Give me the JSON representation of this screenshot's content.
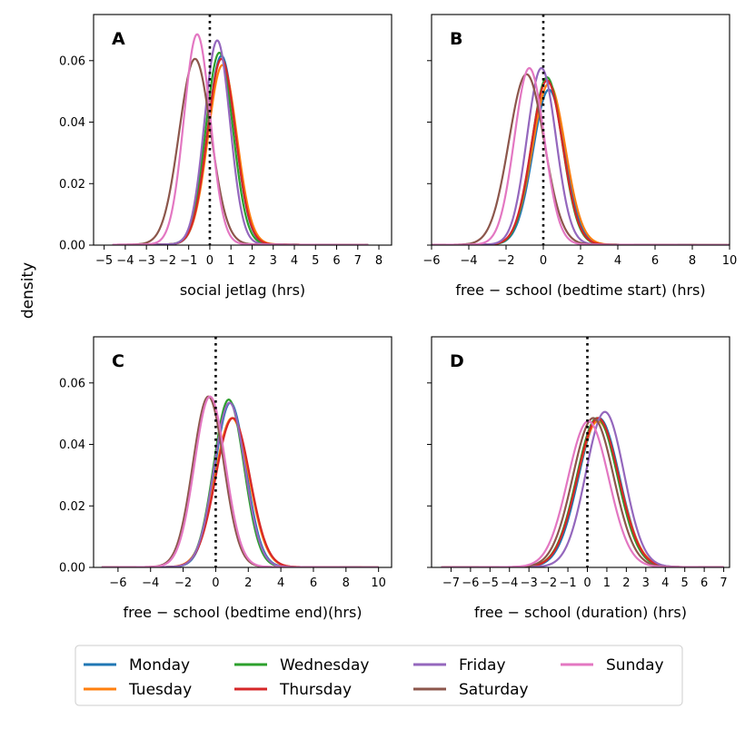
{
  "figure": {
    "shared_ylabel": "density",
    "legend": [
      "Monday",
      "Tuesday",
      "Wednesday",
      "Thursday",
      "Friday",
      "Saturday",
      "Sunday"
    ]
  },
  "colors": {
    "Monday": "#1f77b4",
    "Tuesday": "#ff7f0e",
    "Wednesday": "#2ca02c",
    "Thursday": "#d62728",
    "Friday": "#9467bd",
    "Saturday": "#8c564b",
    "Sunday": "#e377c2"
  },
  "chart_data": [
    {
      "panel": "A",
      "type": "line",
      "title": "A",
      "xlabel": "social jetlag (hrs)",
      "ylabel": "density",
      "xlim": [
        -5.5,
        8.6
      ],
      "ylim": [
        0,
        0.075
      ],
      "xticks": [
        -5,
        -4,
        -3,
        -2,
        -1,
        0,
        1,
        2,
        3,
        4,
        5,
        6,
        7,
        8
      ],
      "yticks": [
        0.0,
        0.02,
        0.04,
        0.06
      ],
      "ytick_labels": [
        "0.00",
        "0.02",
        "0.04",
        "0.06"
      ],
      "vline": 0,
      "series": [
        {
          "name": "Monday",
          "mean": 0.55,
          "sd": 0.65,
          "peak": 0.061,
          "min": -4.6,
          "max": 7.5
        },
        {
          "name": "Tuesday",
          "mean": 0.6,
          "sd": 0.68,
          "peak": 0.058,
          "min": -4.6,
          "max": 7.5
        },
        {
          "name": "Wednesday",
          "mean": 0.45,
          "sd": 0.64,
          "peak": 0.062,
          "min": -4.6,
          "max": 7.5
        },
        {
          "name": "Thursday",
          "mean": 0.55,
          "sd": 0.66,
          "peak": 0.06,
          "min": -4.6,
          "max": 7.5
        },
        {
          "name": "Friday",
          "mean": 0.35,
          "sd": 0.6,
          "peak": 0.066,
          "min": -4.6,
          "max": 7.5
        },
        {
          "name": "Saturday",
          "mean": -0.7,
          "sd": 0.75,
          "peak": 0.06,
          "min": -4.6,
          "max": 7.5
        },
        {
          "name": "Sunday",
          "mean": -0.6,
          "sd": 0.62,
          "peak": 0.068,
          "min": -4.6,
          "max": 7.5
        }
      ]
    },
    {
      "panel": "B",
      "type": "line",
      "title": "B",
      "xlabel": "free − school (bedtime start) (hrs)",
      "ylabel": "",
      "xlim": [
        -6,
        10
      ],
      "ylim": [
        0,
        0.075
      ],
      "xticks": [
        -6,
        -4,
        -2,
        0,
        2,
        4,
        6,
        8,
        10
      ],
      "yticks": [
        0.0,
        0.02,
        0.04,
        0.06
      ],
      "ytick_labels": [],
      "vline": 0,
      "series": [
        {
          "name": "Monday",
          "mean": 0.3,
          "sd": 0.85,
          "peak": 0.05,
          "min": -6,
          "max": 10
        },
        {
          "name": "Tuesday",
          "mean": 0.3,
          "sd": 0.88,
          "peak": 0.052,
          "min": -6,
          "max": 10
        },
        {
          "name": "Wednesday",
          "mean": 0.2,
          "sd": 0.82,
          "peak": 0.054,
          "min": -6,
          "max": 10
        },
        {
          "name": "Thursday",
          "mean": 0.2,
          "sd": 0.84,
          "peak": 0.053,
          "min": -6,
          "max": 10
        },
        {
          "name": "Friday",
          "mean": -0.1,
          "sd": 0.78,
          "peak": 0.057,
          "min": -6,
          "max": 10
        },
        {
          "name": "Saturday",
          "mean": -0.9,
          "sd": 0.95,
          "peak": 0.055,
          "min": -6,
          "max": 10
        },
        {
          "name": "Sunday",
          "mean": -0.75,
          "sd": 0.8,
          "peak": 0.057,
          "min": -6,
          "max": 10
        }
      ]
    },
    {
      "panel": "C",
      "type": "line",
      "title": "C",
      "xlabel": "free − school (bedtime end)(hrs)",
      "ylabel": "density",
      "xlim": [
        -7.5,
        10.8
      ],
      "ylim": [
        0,
        0.075
      ],
      "xticks": [
        -6,
        -4,
        -2,
        0,
        2,
        4,
        6,
        8,
        10
      ],
      "yticks": [
        0.0,
        0.02,
        0.04,
        0.06
      ],
      "ytick_labels": [
        "0.00",
        "0.02",
        "0.04",
        "0.06"
      ],
      "vline": 0,
      "series": [
        {
          "name": "Monday",
          "mean": 0.9,
          "sd": 0.95,
          "peak": 0.053,
          "min": -7,
          "max": 10
        },
        {
          "name": "Tuesday",
          "mean": 1.0,
          "sd": 1.05,
          "peak": 0.048,
          "min": -7,
          "max": 10
        },
        {
          "name": "Wednesday",
          "mean": 0.8,
          "sd": 0.93,
          "peak": 0.054,
          "min": -7,
          "max": 10
        },
        {
          "name": "Thursday",
          "mean": 1.05,
          "sd": 1.05,
          "peak": 0.048,
          "min": -7,
          "max": 10
        },
        {
          "name": "Friday",
          "mean": 0.85,
          "sd": 0.95,
          "peak": 0.053,
          "min": -7,
          "max": 10
        },
        {
          "name": "Saturday",
          "mean": -0.45,
          "sd": 0.95,
          "peak": 0.055,
          "min": -7,
          "max": 10
        },
        {
          "name": "Sunday",
          "mean": -0.35,
          "sd": 0.95,
          "peak": 0.055,
          "min": -7,
          "max": 10
        }
      ]
    },
    {
      "panel": "D",
      "type": "line",
      "title": "D",
      "xlabel": "free − school (duration) (hrs)",
      "ylabel": "",
      "xlim": [
        -8,
        7.3
      ],
      "ylim": [
        0,
        0.075
      ],
      "xticks": [
        -7,
        -6,
        -5,
        -4,
        -3,
        -2,
        -1,
        0,
        1,
        2,
        3,
        4,
        5,
        6,
        7
      ],
      "yticks": [
        0.0,
        0.02,
        0.04,
        0.06
      ],
      "ytick_labels": [],
      "vline": 0,
      "series": [
        {
          "name": "Monday",
          "mean": 0.6,
          "sd": 1.05,
          "peak": 0.048,
          "min": -7.5,
          "max": 7
        },
        {
          "name": "Tuesday",
          "mean": 0.55,
          "sd": 1.08,
          "peak": 0.047,
          "min": -7.5,
          "max": 7
        },
        {
          "name": "Wednesday",
          "mean": 0.5,
          "sd": 1.05,
          "peak": 0.048,
          "min": -7.5,
          "max": 7
        },
        {
          "name": "Thursday",
          "mean": 0.55,
          "sd": 1.06,
          "peak": 0.048,
          "min": -7.5,
          "max": 7
        },
        {
          "name": "Friday",
          "mean": 0.9,
          "sd": 0.98,
          "peak": 0.05,
          "min": -7.5,
          "max": 7
        },
        {
          "name": "Saturday",
          "mean": 0.3,
          "sd": 1.05,
          "peak": 0.048,
          "min": -7.5,
          "max": 7
        },
        {
          "name": "Sunday",
          "mean": 0.05,
          "sd": 1.05,
          "peak": 0.047,
          "min": -7.5,
          "max": 7
        }
      ]
    }
  ]
}
